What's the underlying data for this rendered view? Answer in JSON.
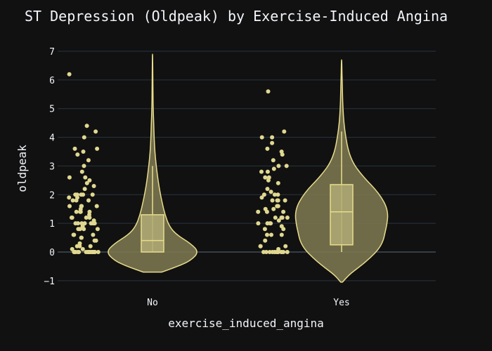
{
  "chart_data": {
    "type": "violin",
    "title": "ST Depression (Oldpeak) by Exercise-Induced Angina",
    "xlabel": "exercise_induced_angina",
    "ylabel": "oldpeak",
    "ylim": [
      -1.4,
      7.4
    ],
    "yticks": [
      -1,
      0,
      1,
      2,
      3,
      4,
      5,
      6,
      7
    ],
    "ytick_labels": [
      "−1",
      "0",
      "1",
      "2",
      "3",
      "4",
      "5",
      "6",
      "7"
    ],
    "categories": [
      "No",
      "Yes"
    ],
    "grid": true,
    "colors": {
      "fill": "#7a7650",
      "line": "#e8dc8a",
      "box": "#b0aa74",
      "point": "#e0d890",
      "background": "#111111"
    },
    "series": [
      {
        "category": "No",
        "box": {
          "q1": 0.0,
          "median": 0.4,
          "q3": 1.3,
          "whisker_low": 0.0,
          "whisker_high": 3.0
        },
        "range": [
          -0.7,
          6.9
        ],
        "density": [
          [
            -0.7,
            0.2
          ],
          [
            -0.5,
            0.55
          ],
          [
            -0.3,
            0.82
          ],
          [
            0.0,
            1.0
          ],
          [
            0.3,
            0.82
          ],
          [
            0.6,
            0.52
          ],
          [
            0.9,
            0.36
          ],
          [
            1.3,
            0.27
          ],
          [
            1.7,
            0.21
          ],
          [
            2.1,
            0.16
          ],
          [
            2.5,
            0.12
          ],
          [
            3.0,
            0.08
          ],
          [
            3.5,
            0.05
          ],
          [
            4.0,
            0.035
          ],
          [
            4.5,
            0.025
          ],
          [
            5.0,
            0.015
          ],
          [
            5.5,
            0.01
          ],
          [
            6.0,
            0.008
          ],
          [
            6.5,
            0.005
          ],
          [
            6.9,
            0.002
          ]
        ],
        "points": [
          0,
          0,
          0,
          0,
          0,
          0,
          0,
          0,
          0,
          0,
          0,
          0,
          0,
          0,
          0,
          0,
          0,
          0,
          0,
          0,
          0.1,
          0.1,
          0.2,
          0.2,
          0.2,
          0.3,
          0.4,
          0.4,
          0.5,
          0.5,
          0.6,
          0.6,
          0.6,
          0.8,
          0.8,
          0.8,
          0.8,
          0.9,
          1,
          1,
          1,
          1,
          1,
          1,
          1,
          1.1,
          1.2,
          1.2,
          1.2,
          1.2,
          1.3,
          1.4,
          1.4,
          1.4,
          1.4,
          1.5,
          1.6,
          1.6,
          1.6,
          1.6,
          1.8,
          1.8,
          1.8,
          1.9,
          1.9,
          2,
          2,
          2,
          2,
          2,
          2.2,
          2.3,
          2.4,
          2.5,
          2.6,
          2.6,
          2.8,
          3,
          3.2,
          3.4,
          3.5,
          3.6,
          3.6,
          4,
          4.2,
          4.4,
          6.2
        ]
      },
      {
        "category": "Yes",
        "box": {
          "q1": 0.25,
          "median": 1.4,
          "q3": 2.35,
          "whisker_low": 0.0,
          "whisker_high": 4.2
        },
        "range": [
          -1.05,
          6.7
        ],
        "density": [
          [
            -1.05,
            0.02
          ],
          [
            -0.8,
            0.15
          ],
          [
            -0.5,
            0.4
          ],
          [
            -0.2,
            0.62
          ],
          [
            0.1,
            0.8
          ],
          [
            0.4,
            0.9
          ],
          [
            0.7,
            0.94
          ],
          [
            1.0,
            0.98
          ],
          [
            1.3,
            1.0
          ],
          [
            1.6,
            0.96
          ],
          [
            1.9,
            0.86
          ],
          [
            2.2,
            0.72
          ],
          [
            2.5,
            0.54
          ],
          [
            2.8,
            0.38
          ],
          [
            3.1,
            0.25
          ],
          [
            3.5,
            0.15
          ],
          [
            4.0,
            0.09
          ],
          [
            4.5,
            0.05
          ],
          [
            5.0,
            0.03
          ],
          [
            5.5,
            0.02
          ],
          [
            6.0,
            0.012
          ],
          [
            6.4,
            0.006
          ],
          [
            6.7,
            0.002
          ]
        ],
        "points": [
          0,
          0,
          0,
          0,
          0,
          0,
          0,
          0,
          0,
          0,
          0,
          0,
          0,
          0,
          0.1,
          0.2,
          0.2,
          0.2,
          0.4,
          0.6,
          0.6,
          0.6,
          0.8,
          0.8,
          0.9,
          1,
          1,
          1,
          1,
          1.1,
          1.2,
          1.2,
          1.2,
          1.2,
          1.4,
          1.4,
          1.4,
          1.5,
          1.5,
          1.6,
          1.6,
          1.6,
          1.8,
          1.8,
          1.8,
          1.8,
          1.9,
          2,
          2,
          2,
          2.1,
          2.2,
          2.4,
          2.5,
          2.6,
          2.6,
          2.8,
          2.8,
          2.9,
          3,
          3,
          3.2,
          3.4,
          3.5,
          3.6,
          3.8,
          4,
          4,
          4.2,
          5.6
        ]
      }
    ]
  }
}
